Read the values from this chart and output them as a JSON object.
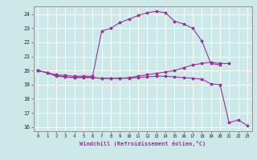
{
  "background_color": "#cce8e8",
  "grid_color": "#aacccc",
  "line_color": "#993399",
  "spine_color": "#888888",
  "xlim_min": -0.5,
  "xlim_max": 23.5,
  "ylim_min": 15.7,
  "ylim_max": 24.55,
  "yticks": [
    16,
    17,
    18,
    19,
    20,
    21,
    22,
    23,
    24
  ],
  "xticks": [
    0,
    1,
    2,
    3,
    4,
    5,
    6,
    7,
    8,
    9,
    10,
    11,
    12,
    13,
    14,
    15,
    16,
    17,
    18,
    19,
    20,
    21,
    22,
    23
  ],
  "xlabel": "Windchill (Refroidissement éolien,°C)",
  "series1_x": [
    0,
    1,
    2,
    3,
    4,
    5,
    6,
    7,
    8,
    9,
    10,
    11,
    12,
    13,
    14,
    15,
    16,
    17,
    18,
    19,
    20,
    21,
    22,
    23
  ],
  "series1_y": [
    20.0,
    19.85,
    19.6,
    19.55,
    19.5,
    19.55,
    19.5,
    19.45,
    19.45,
    19.45,
    19.45,
    19.5,
    19.55,
    19.6,
    19.6,
    19.55,
    19.5,
    19.45,
    19.4,
    19.05,
    19.0,
    16.3,
    16.5,
    16.1
  ],
  "series2_x": [
    0,
    1,
    2,
    3,
    4,
    5,
    6,
    7,
    8,
    9,
    10,
    11,
    12,
    13,
    14,
    15,
    16,
    17,
    18,
    19,
    20,
    21
  ],
  "series2_y": [
    20.0,
    19.85,
    19.65,
    19.55,
    19.5,
    19.5,
    19.5,
    19.45,
    19.45,
    19.45,
    19.5,
    19.6,
    19.7,
    19.8,
    19.9,
    20.0,
    20.2,
    20.4,
    20.5,
    20.6,
    20.5,
    20.5
  ],
  "series3_x": [
    0,
    1,
    2,
    3,
    4,
    5,
    6,
    7,
    8,
    9,
    10,
    11,
    12,
    13,
    14,
    15,
    16,
    17,
    18,
    19,
    20
  ],
  "series3_y": [
    20.0,
    19.85,
    19.7,
    19.65,
    19.6,
    19.6,
    19.6,
    22.8,
    23.0,
    23.4,
    23.65,
    23.9,
    24.1,
    24.2,
    24.1,
    23.5,
    23.3,
    23.0,
    22.1,
    20.5,
    20.4
  ]
}
